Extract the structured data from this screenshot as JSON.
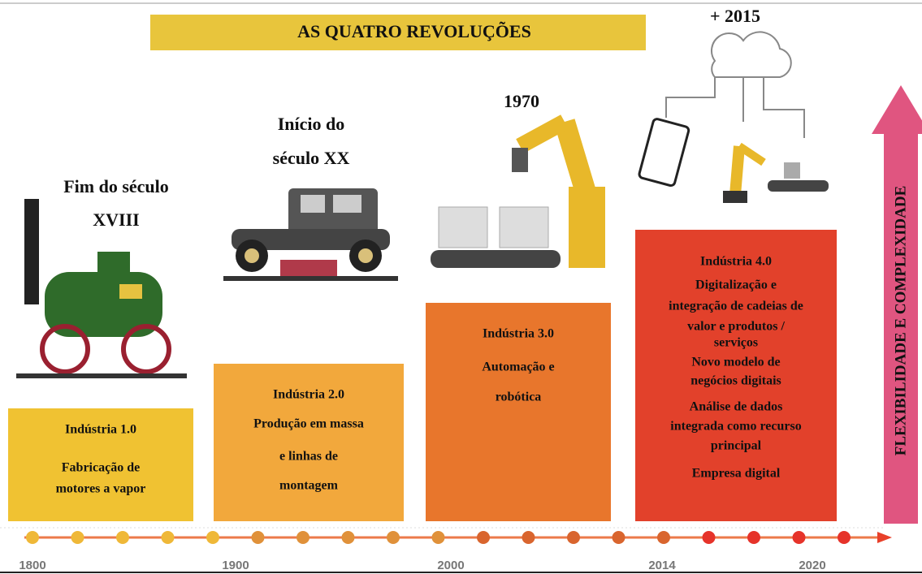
{
  "header": {
    "title": "AS QUATRO REVOLUÇÕES",
    "top_label": "+ 2015"
  },
  "revolutions": [
    {
      "era": [
        "Fim do século",
        "XVIII"
      ],
      "title": "Indústria 1.0",
      "description": [
        "Fabricação de",
        "motores a vapor"
      ]
    },
    {
      "era": [
        "Início do",
        "século XX"
      ],
      "title": "Indústria 2.0",
      "description": [
        "Produção em massa",
        "e linhas de",
        "montagem"
      ]
    },
    {
      "era": [
        "1970"
      ],
      "title": "Indústria 3.0",
      "description": [
        "Automação e",
        "robótica"
      ]
    },
    {
      "era": [],
      "title": "Indústria 4.0",
      "description": [
        "Digitalização e",
        "integração de cadeias de",
        "valor e produtos /",
        "serviços",
        "Novo modelo de",
        "negócios digitais",
        "Análise de dados",
        "integrada como recurso",
        "principal",
        "Empresa digital"
      ]
    }
  ],
  "timeline": {
    "years": [
      "1800",
      "1900",
      "2000",
      "2014",
      "2020"
    ]
  },
  "side_label": "FLEXIBILIDADE E COMPLEXIDADE"
}
